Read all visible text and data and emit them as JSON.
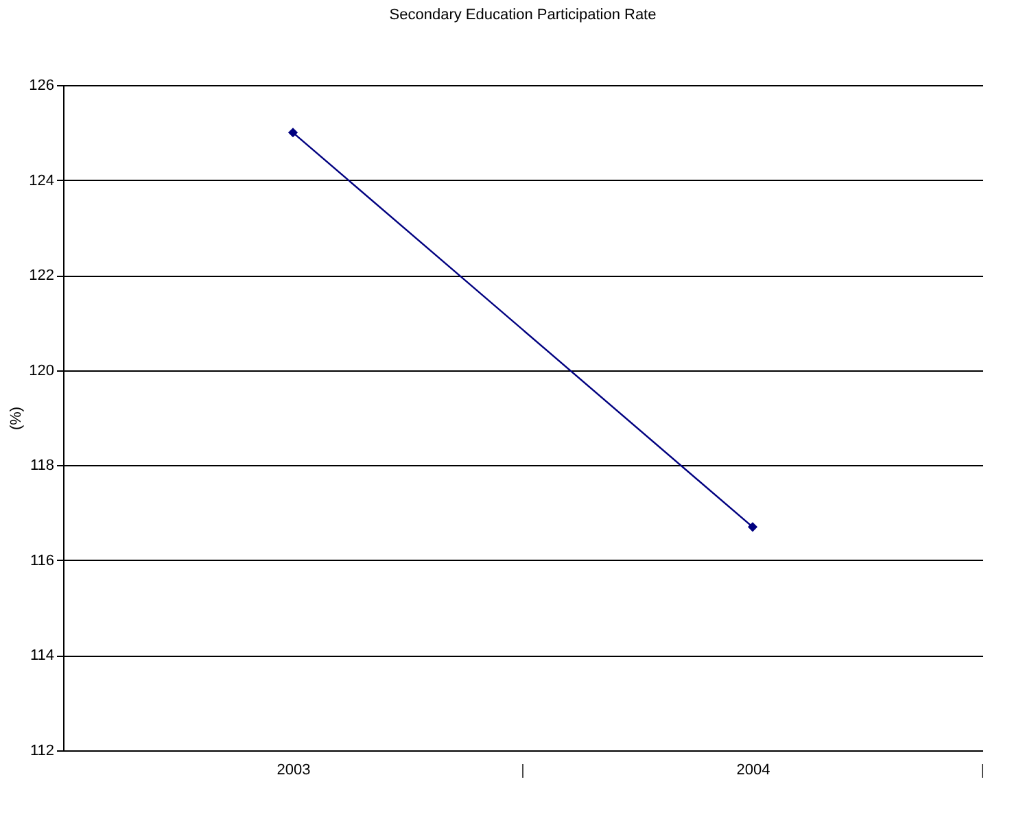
{
  "chart_data": {
    "type": "line",
    "title": "Secondary Education Participation Rate",
    "ylabel": "(%)",
    "categories": [
      "2003",
      "2004"
    ],
    "series": [
      {
        "color": "#000080",
        "values": [
          125.0,
          116.7
        ]
      }
    ],
    "ylim": [
      112,
      126
    ],
    "yticks": [
      112,
      114,
      116,
      118,
      120,
      122,
      124,
      126
    ],
    "grid": "y",
    "marker": "diamond",
    "line_style": "solid"
  }
}
